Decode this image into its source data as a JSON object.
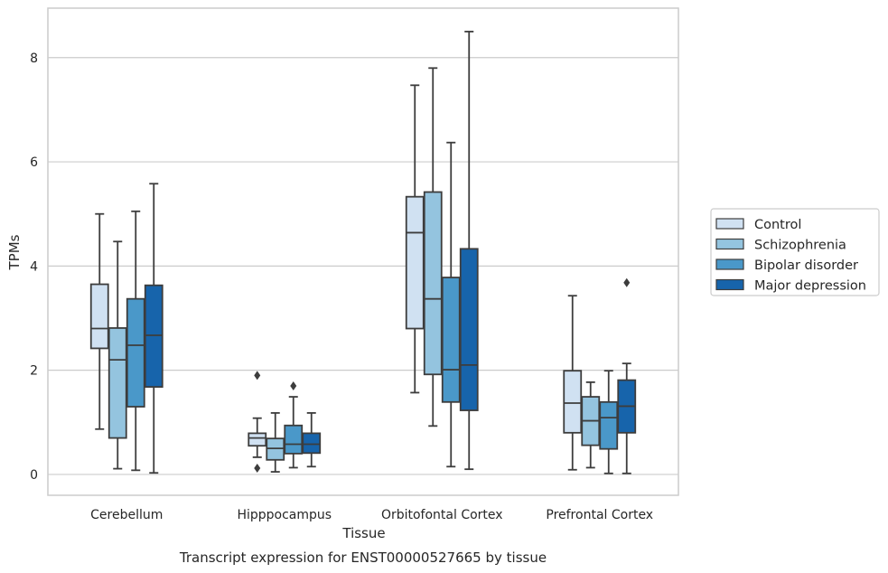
{
  "chart_data": {
    "type": "box",
    "caption": "Transcript expression for ENST00000527665 by tissue",
    "xlabel": "Tissue",
    "ylabel": "TPMs",
    "ylim": [
      -0.4,
      8.95
    ],
    "yticks": [
      0,
      2,
      4,
      6,
      8
    ],
    "grid": true,
    "legend_position": "right",
    "categories": [
      "Cerebellum",
      "Hipppocampus",
      "Orbitofontal Cortex",
      "Prefrontal Cortex"
    ],
    "series": [
      {
        "name": "Control",
        "color": "#d0e1f2",
        "boxes": [
          {
            "whislo": 0.87,
            "q1": 2.42,
            "med": 2.8,
            "q3": 3.65,
            "whishi": 5.0,
            "fliers": []
          },
          {
            "whislo": 0.33,
            "q1": 0.55,
            "med": 0.7,
            "q3": 0.79,
            "whishi": 1.08,
            "fliers": [
              1.9,
              0.12
            ]
          },
          {
            "whislo": 1.57,
            "q1": 2.8,
            "med": 4.64,
            "q3": 5.33,
            "whishi": 7.47,
            "fliers": []
          },
          {
            "whislo": 0.09,
            "q1": 0.8,
            "med": 1.37,
            "q3": 1.99,
            "whishi": 3.43,
            "fliers": []
          }
        ]
      },
      {
        "name": "Schizophrenia",
        "color": "#94c4df",
        "boxes": [
          {
            "whislo": 0.11,
            "q1": 0.7,
            "med": 2.2,
            "q3": 2.81,
            "whishi": 4.47,
            "fliers": []
          },
          {
            "whislo": 0.05,
            "q1": 0.28,
            "med": 0.5,
            "q3": 0.69,
            "whishi": 1.18,
            "fliers": []
          },
          {
            "whislo": 0.93,
            "q1": 1.92,
            "med": 3.37,
            "q3": 5.42,
            "whishi": 7.8,
            "fliers": []
          },
          {
            "whislo": 0.13,
            "q1": 0.56,
            "med": 1.03,
            "q3": 1.49,
            "whishi": 1.77,
            "fliers": []
          }
        ]
      },
      {
        "name": "Bipolar disorder",
        "color": "#4a98c9",
        "boxes": [
          {
            "whislo": 0.08,
            "q1": 1.3,
            "med": 2.48,
            "q3": 3.37,
            "whishi": 5.05,
            "fliers": []
          },
          {
            "whislo": 0.13,
            "q1": 0.4,
            "med": 0.58,
            "q3": 0.94,
            "whishi": 1.49,
            "fliers": [
              1.7
            ]
          },
          {
            "whislo": 0.15,
            "q1": 1.39,
            "med": 2.01,
            "q3": 3.78,
            "whishi": 6.37,
            "fliers": []
          },
          {
            "whislo": 0.02,
            "q1": 0.49,
            "med": 1.09,
            "q3": 1.39,
            "whishi": 1.99,
            "fliers": []
          }
        ]
      },
      {
        "name": "Major depression",
        "color": "#1764ab",
        "boxes": [
          {
            "whislo": 0.03,
            "q1": 1.68,
            "med": 2.67,
            "q3": 3.63,
            "whishi": 5.58,
            "fliers": []
          },
          {
            "whislo": 0.15,
            "q1": 0.41,
            "med": 0.58,
            "q3": 0.79,
            "whishi": 1.18,
            "fliers": []
          },
          {
            "whislo": 0.1,
            "q1": 1.23,
            "med": 2.1,
            "q3": 4.33,
            "whishi": 8.5,
            "fliers": []
          },
          {
            "whislo": 0.02,
            "q1": 0.8,
            "med": 1.31,
            "q3": 1.81,
            "whishi": 2.13,
            "fliers": [
              3.68
            ]
          }
        ]
      }
    ]
  }
}
